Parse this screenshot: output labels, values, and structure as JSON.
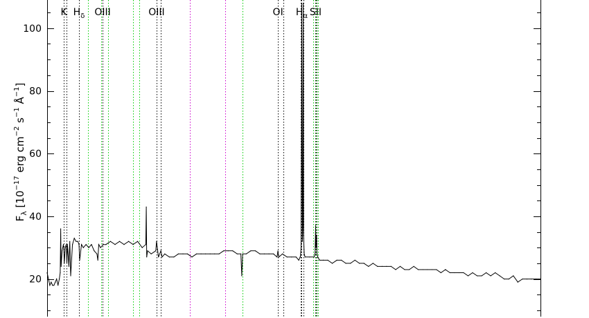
{
  "chart_data": {
    "type": "line",
    "ylabel": "Fλ [10⁻¹⁷ erg cm⁻² s⁻¹ Å⁻¹]",
    "ylabel_parts": {
      "F": "F",
      "lambda": "λ",
      "bracket_open": " [10",
      "exp1": "−17",
      "erg_cm": " erg cm",
      "exp2": "−2",
      "s": " s",
      "exp3": "−1",
      "angstrom": " Å",
      "exp4": "−1",
      "bracket_close": "]"
    },
    "ylim": [
      8,
      109
    ],
    "xlim": [
      3750,
      9200
    ],
    "yticks": [
      20,
      40,
      60,
      80,
      100
    ],
    "series": [
      {
        "color": "#000000",
        "x": [
          3750,
          3765,
          3780,
          3795,
          3810,
          3825,
          3840,
          3855,
          3870,
          3885,
          3895,
          3900,
          3905,
          3915,
          3930,
          3934,
          3940,
          3950,
          3962,
          3968,
          3975,
          3990,
          4000,
          4010,
          4030,
          4050,
          4070,
          4090,
          4102,
          4110,
          4130,
          4150,
          4180,
          4210,
          4240,
          4270,
          4300,
          4310,
          4320,
          4340,
          4370,
          4400,
          4450,
          4500,
          4550,
          4600,
          4650,
          4700,
          4750,
          4800,
          4840,
          4845,
          4850,
          4860,
          4900,
          4950,
          4959,
          4980,
          5007,
          5020,
          5050,
          5100,
          5150,
          5200,
          5250,
          5300,
          5350,
          5400,
          5450,
          5500,
          5550,
          5600,
          5650,
          5700,
          5750,
          5800,
          5850,
          5890,
          5900,
          5910,
          5950,
          6000,
          6050,
          6100,
          6150,
          6200,
          6250,
          6290,
          6300,
          6310,
          6350,
          6400,
          6450,
          6500,
          6530,
          6545,
          6548,
          6555,
          6560,
          6563,
          6566,
          6570,
          6575,
          6580,
          6583,
          6590,
          6600,
          6650,
          6700,
          6710,
          6716,
          6720,
          6726,
          6731,
          6740,
          6760,
          6800,
          6850,
          6900,
          6950,
          7000,
          7050,
          7100,
          7150,
          7200,
          7250,
          7300,
          7350,
          7400,
          7450,
          7500,
          7550,
          7600,
          7650,
          7700,
          7750,
          7800,
          7850,
          7900,
          7950,
          8000,
          8050,
          8100,
          8150,
          8200,
          8250,
          8300,
          8350,
          8400,
          8450,
          8500,
          8550,
          8600,
          8650,
          8700,
          8750,
          8800,
          8850,
          8900,
          8950,
          9000,
          9050,
          9100,
          9150,
          9200
        ],
        "y": [
          22,
          20,
          18,
          19,
          18,
          18,
          19,
          20,
          18,
          20,
          22,
          36,
          24,
          29,
          31,
          30,
          25,
          30,
          31,
          25,
          31,
          24,
          32,
          21,
          31,
          33,
          32,
          32,
          31,
          26,
          31,
          30,
          31,
          30,
          31,
          29,
          28,
          26,
          31,
          30,
          31,
          31,
          32,
          31,
          32,
          31,
          32,
          31,
          32,
          30,
          31,
          43,
          27,
          29,
          28,
          29,
          32,
          27,
          29,
          27,
          28,
          27,
          27,
          28,
          28,
          28,
          27,
          28,
          28,
          28,
          28,
          28,
          28,
          29,
          29,
          29,
          28,
          28,
          21,
          28,
          28,
          29,
          29,
          28,
          28,
          28,
          28,
          27,
          29,
          27,
          28,
          27,
          27,
          27,
          26,
          27,
          27,
          30,
          64,
          108,
          80,
          32,
          37,
          108,
          34,
          28,
          27,
          27,
          27,
          28,
          37,
          30,
          34,
          28,
          27,
          26,
          26,
          26,
          25,
          26,
          26,
          25,
          25,
          26,
          25,
          25,
          24,
          25,
          24,
          24,
          24,
          24,
          23,
          24,
          23,
          23,
          24,
          23,
          23,
          23,
          23,
          23,
          22,
          23,
          22,
          22,
          22,
          22,
          21,
          22,
          21,
          21,
          22,
          21,
          22,
          21,
          20,
          20,
          21,
          19,
          20,
          20,
          20,
          20,
          20
        ]
      }
    ],
    "reference_lines": [
      {
        "x": 4200,
        "color": "#00cc00"
      },
      {
        "x": 4350,
        "color": "#00cc00"
      },
      {
        "x": 4420,
        "color": "#00cc00"
      },
      {
        "x": 4700,
        "color": "#00cc00"
      },
      {
        "x": 4770,
        "color": "#00cc00"
      },
      {
        "x": 5910,
        "color": "#00cc00"
      },
      {
        "x": 6690,
        "color": "#00cc00"
      },
      {
        "x": 6720,
        "color": "#00cc00"
      },
      {
        "x": 6740,
        "color": "#00cc00"
      },
      {
        "x": 5325,
        "color": "#cc00cc"
      },
      {
        "x": 5720,
        "color": "#cc00cc"
      },
      {
        "x": 3934,
        "color": "#000000",
        "label": "K"
      },
      {
        "x": 3968,
        "color": "#000000"
      },
      {
        "x": 4102,
        "color": "#000000",
        "label": "H",
        "sub": "δ"
      },
      {
        "x": 4363,
        "color": "#000000",
        "label": "OIII"
      },
      {
        "x": 4959,
        "color": "#000000",
        "label": "OIII"
      },
      {
        "x": 5007,
        "color": "#000000"
      },
      {
        "x": 6300,
        "color": "#000000",
        "label": "OI"
      },
      {
        "x": 6363,
        "color": "#000000"
      },
      {
        "x": 6548,
        "color": "#000000"
      },
      {
        "x": 6563,
        "color": "#000000",
        "label": "H",
        "sub": "α"
      },
      {
        "x": 6583,
        "color": "#000000"
      },
      {
        "x": 6716,
        "color": "#000000",
        "label": "SII"
      },
      {
        "x": 6731,
        "color": "#000000"
      }
    ]
  }
}
